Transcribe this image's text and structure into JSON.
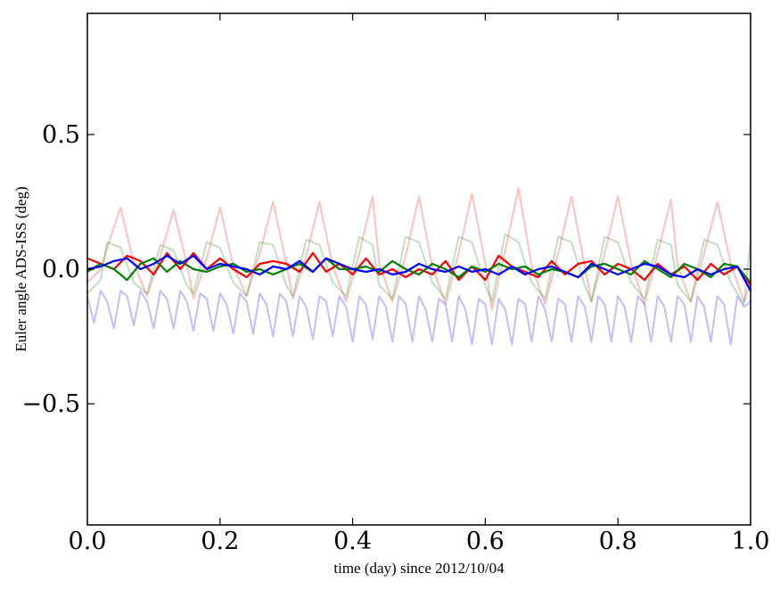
{
  "chart_data": {
    "type": "line",
    "title": "",
    "xlabel": "time (day) since 2012/10/04",
    "ylabel": "Euler angle ADS-ISS (deg)",
    "xlim": [
      0.0,
      1.0
    ],
    "ylim": [
      -0.95,
      0.95
    ],
    "grid": false,
    "legend": "none",
    "x_ticks": [
      0.0,
      0.2,
      0.4,
      0.6,
      0.8,
      1.0
    ],
    "x_tick_labels": [
      "0.0",
      "0.2",
      "0.4",
      "0.6",
      "0.8",
      "1.0"
    ],
    "y_ticks": [
      -0.5,
      0.0,
      0.5
    ],
    "y_tick_labels": [
      "−0.5",
      "0.0",
      "0.5"
    ],
    "series": [
      {
        "color": "#ff0000",
        "opacity": 0.25,
        "x": [
          0,
          0.02,
          0.03,
          0.05,
          0.07,
          0.09,
          0.11,
          0.13,
          0.15,
          0.16,
          0.18,
          0.2,
          0.22,
          0.24,
          0.26,
          0.28,
          0.3,
          0.31,
          0.33,
          0.35,
          0.37,
          0.39,
          0.41,
          0.43,
          0.44,
          0.46,
          0.48,
          0.5,
          0.52,
          0.54,
          0.56,
          0.58,
          0.6,
          0.61,
          0.63,
          0.65,
          0.67,
          0.69,
          0.71,
          0.73,
          0.75,
          0.76,
          0.78,
          0.8,
          0.82,
          0.84,
          0.86,
          0.88,
          0.89,
          0.91,
          0.93,
          0.95,
          0.97,
          0.99,
          1.0
        ],
        "y": [
          -0.05,
          0.0,
          0.08,
          0.23,
          0.02,
          -0.1,
          0.05,
          0.22,
          0.02,
          -0.11,
          0.04,
          0.23,
          0.01,
          -0.1,
          0.06,
          0.25,
          0.02,
          -0.11,
          0.05,
          0.25,
          0.01,
          -0.12,
          0.06,
          0.27,
          0.02,
          -0.12,
          0.05,
          0.27,
          0.01,
          -0.13,
          0.06,
          0.28,
          0.02,
          -0.15,
          0.07,
          0.3,
          0.01,
          -0.13,
          0.06,
          0.27,
          0.01,
          -0.12,
          0.06,
          0.27,
          0.02,
          -0.13,
          0.06,
          0.26,
          0.01,
          -0.12,
          0.06,
          0.25,
          0.02,
          -0.12,
          -0.05
        ]
      },
      {
        "color": "#008000",
        "opacity": 0.25,
        "x": [
          0,
          0.02,
          0.03,
          0.05,
          0.07,
          0.09,
          0.11,
          0.13,
          0.15,
          0.16,
          0.18,
          0.2,
          0.22,
          0.24,
          0.26,
          0.28,
          0.3,
          0.31,
          0.33,
          0.35,
          0.37,
          0.39,
          0.41,
          0.43,
          0.44,
          0.46,
          0.48,
          0.5,
          0.52,
          0.54,
          0.56,
          0.58,
          0.6,
          0.61,
          0.63,
          0.65,
          0.67,
          0.69,
          0.71,
          0.73,
          0.75,
          0.76,
          0.78,
          0.8,
          0.82,
          0.84,
          0.86,
          0.88,
          0.89,
          0.91,
          0.93,
          0.95,
          0.97,
          0.99,
          1.0
        ],
        "y": [
          -0.09,
          -0.04,
          0.1,
          0.08,
          -0.05,
          -0.09,
          0.09,
          0.07,
          -0.06,
          -0.09,
          0.1,
          0.08,
          -0.05,
          -0.1,
          0.1,
          0.09,
          -0.06,
          -0.1,
          0.11,
          0.09,
          -0.05,
          -0.1,
          0.12,
          0.09,
          -0.06,
          -0.11,
          0.12,
          0.1,
          -0.05,
          -0.11,
          0.12,
          0.1,
          -0.06,
          -0.12,
          0.13,
          0.1,
          -0.05,
          -0.11,
          0.12,
          0.1,
          -0.06,
          -0.12,
          0.12,
          0.1,
          -0.05,
          -0.11,
          0.11,
          0.09,
          -0.06,
          -0.12,
          0.11,
          0.09,
          -0.05,
          -0.13,
          0.11
        ]
      },
      {
        "color": "#0000ff",
        "opacity": 0.25,
        "x": [
          0,
          0.01,
          0.02,
          0.03,
          0.04,
          0.05,
          0.06,
          0.07,
          0.08,
          0.09,
          0.1,
          0.11,
          0.12,
          0.13,
          0.14,
          0.15,
          0.16,
          0.17,
          0.18,
          0.19,
          0.2,
          0.21,
          0.22,
          0.23,
          0.24,
          0.25,
          0.26,
          0.27,
          0.28,
          0.29,
          0.3,
          0.31,
          0.32,
          0.33,
          0.34,
          0.35,
          0.36,
          0.37,
          0.38,
          0.39,
          0.4,
          0.41,
          0.42,
          0.43,
          0.44,
          0.45,
          0.46,
          0.47,
          0.48,
          0.49,
          0.5,
          0.51,
          0.52,
          0.53,
          0.54,
          0.55,
          0.56,
          0.57,
          0.58,
          0.59,
          0.6,
          0.61,
          0.62,
          0.63,
          0.64,
          0.65,
          0.66,
          0.67,
          0.68,
          0.69,
          0.7,
          0.71,
          0.72,
          0.73,
          0.74,
          0.75,
          0.76,
          0.77,
          0.78,
          0.79,
          0.8,
          0.81,
          0.82,
          0.83,
          0.84,
          0.85,
          0.86,
          0.87,
          0.88,
          0.89,
          0.9,
          0.91,
          0.92,
          0.93,
          0.94,
          0.95,
          0.96,
          0.97,
          0.98,
          0.99,
          1.0
        ],
        "y": [
          -0.1,
          -0.2,
          -0.08,
          -0.12,
          -0.22,
          -0.08,
          -0.1,
          -0.21,
          -0.08,
          -0.12,
          -0.22,
          -0.08,
          -0.11,
          -0.22,
          -0.08,
          -0.12,
          -0.23,
          -0.09,
          -0.11,
          -0.23,
          -0.09,
          -0.13,
          -0.24,
          -0.09,
          -0.12,
          -0.24,
          -0.09,
          -0.13,
          -0.25,
          -0.09,
          -0.12,
          -0.25,
          -0.1,
          -0.14,
          -0.26,
          -0.1,
          -0.12,
          -0.25,
          -0.1,
          -0.14,
          -0.27,
          -0.1,
          -0.13,
          -0.26,
          -0.1,
          -0.14,
          -0.27,
          -0.1,
          -0.13,
          -0.27,
          -0.1,
          -0.15,
          -0.27,
          -0.11,
          -0.13,
          -0.27,
          -0.1,
          -0.15,
          -0.28,
          -0.11,
          -0.13,
          -0.28,
          -0.11,
          -0.15,
          -0.28,
          -0.11,
          -0.13,
          -0.27,
          -0.1,
          -0.15,
          -0.27,
          -0.11,
          -0.13,
          -0.27,
          -0.1,
          -0.14,
          -0.27,
          -0.1,
          -0.13,
          -0.27,
          -0.1,
          -0.14,
          -0.27,
          -0.1,
          -0.13,
          -0.27,
          -0.1,
          -0.14,
          -0.27,
          -0.1,
          -0.13,
          -0.27,
          -0.1,
          -0.14,
          -0.27,
          -0.1,
          -0.13,
          -0.28,
          -0.1,
          -0.14,
          -0.12
        ]
      },
      {
        "color": "#ff0000",
        "opacity": 1,
        "x": [
          0,
          0.02,
          0.04,
          0.06,
          0.08,
          0.1,
          0.12,
          0.14,
          0.16,
          0.18,
          0.2,
          0.22,
          0.24,
          0.26,
          0.28,
          0.3,
          0.32,
          0.34,
          0.36,
          0.38,
          0.4,
          0.42,
          0.44,
          0.46,
          0.48,
          0.5,
          0.52,
          0.54,
          0.56,
          0.58,
          0.6,
          0.62,
          0.64,
          0.66,
          0.68,
          0.7,
          0.72,
          0.74,
          0.76,
          0.78,
          0.8,
          0.82,
          0.84,
          0.86,
          0.88,
          0.9,
          0.92,
          0.94,
          0.96,
          0.98,
          1.0
        ],
        "y": [
          0.04,
          0.02,
          0.0,
          0.05,
          0.03,
          -0.02,
          0.06,
          0.0,
          0.06,
          0.0,
          0.04,
          0.0,
          -0.03,
          0.02,
          0.03,
          0.02,
          -0.01,
          0.06,
          -0.01,
          0.02,
          -0.02,
          0.04,
          -0.02,
          0.0,
          -0.03,
          0.0,
          -0.02,
          0.03,
          -0.04,
          0.01,
          -0.04,
          0.05,
          0.01,
          -0.01,
          -0.03,
          0.03,
          -0.02,
          0.02,
          0.03,
          -0.02,
          0.02,
          0.0,
          -0.04,
          0.02,
          -0.02,
          0.01,
          -0.04,
          0.02,
          -0.02,
          0.01,
          -0.06
        ]
      },
      {
        "color": "#008000",
        "opacity": 1,
        "x": [
          0,
          0.02,
          0.04,
          0.06,
          0.08,
          0.1,
          0.12,
          0.14,
          0.16,
          0.18,
          0.2,
          0.22,
          0.24,
          0.26,
          0.28,
          0.3,
          0.32,
          0.34,
          0.36,
          0.38,
          0.4,
          0.42,
          0.44,
          0.46,
          0.48,
          0.5,
          0.52,
          0.54,
          0.56,
          0.58,
          0.6,
          0.62,
          0.64,
          0.66,
          0.68,
          0.7,
          0.72,
          0.74,
          0.76,
          0.78,
          0.8,
          0.82,
          0.84,
          0.86,
          0.88,
          0.9,
          0.92,
          0.94,
          0.96,
          0.98,
          1.0
        ],
        "y": [
          -0.01,
          0.02,
          0.0,
          -0.04,
          0.02,
          0.04,
          -0.01,
          0.03,
          0.0,
          -0.01,
          0.01,
          0.02,
          -0.01,
          0.0,
          -0.02,
          0.0,
          0.02,
          -0.01,
          0.04,
          0.0,
          0.0,
          0.01,
          -0.01,
          0.03,
          0.0,
          -0.02,
          0.02,
          0.0,
          -0.03,
          0.01,
          -0.01,
          0.02,
          0.0,
          0.01,
          -0.02,
          0.0,
          -0.01,
          -0.03,
          0.01,
          0.02,
          0.0,
          -0.02,
          0.03,
          0.0,
          -0.03,
          0.02,
          0.0,
          -0.03,
          0.02,
          0.01,
          -0.05
        ]
      },
      {
        "color": "#0000ff",
        "opacity": 1,
        "x": [
          0,
          0.02,
          0.04,
          0.06,
          0.08,
          0.1,
          0.12,
          0.14,
          0.16,
          0.18,
          0.2,
          0.22,
          0.24,
          0.26,
          0.28,
          0.3,
          0.32,
          0.34,
          0.36,
          0.38,
          0.4,
          0.42,
          0.44,
          0.46,
          0.48,
          0.5,
          0.52,
          0.54,
          0.56,
          0.58,
          0.6,
          0.62,
          0.64,
          0.66,
          0.68,
          0.7,
          0.72,
          0.74,
          0.76,
          0.78,
          0.8,
          0.82,
          0.84,
          0.86,
          0.88,
          0.9,
          0.92,
          0.94,
          0.96,
          0.98,
          1.0
        ],
        "y": [
          0.0,
          0.01,
          0.03,
          0.04,
          0.0,
          0.02,
          0.05,
          0.02,
          0.05,
          0.0,
          0.02,
          0.01,
          0.0,
          -0.02,
          0.01,
          0.0,
          0.03,
          -0.01,
          0.04,
          0.02,
          0.0,
          -0.01,
          0.0,
          -0.02,
          -0.01,
          0.02,
          0.0,
          -0.01,
          0.01,
          -0.01,
          0.0,
          -0.02,
          0.01,
          -0.02,
          0.0,
          0.01,
          -0.01,
          -0.03,
          0.02,
          0.0,
          -0.02,
          0.0,
          0.02,
          0.01,
          -0.02,
          -0.03,
          0.0,
          -0.02,
          0.0,
          0.01,
          -0.08
        ]
      }
    ]
  }
}
